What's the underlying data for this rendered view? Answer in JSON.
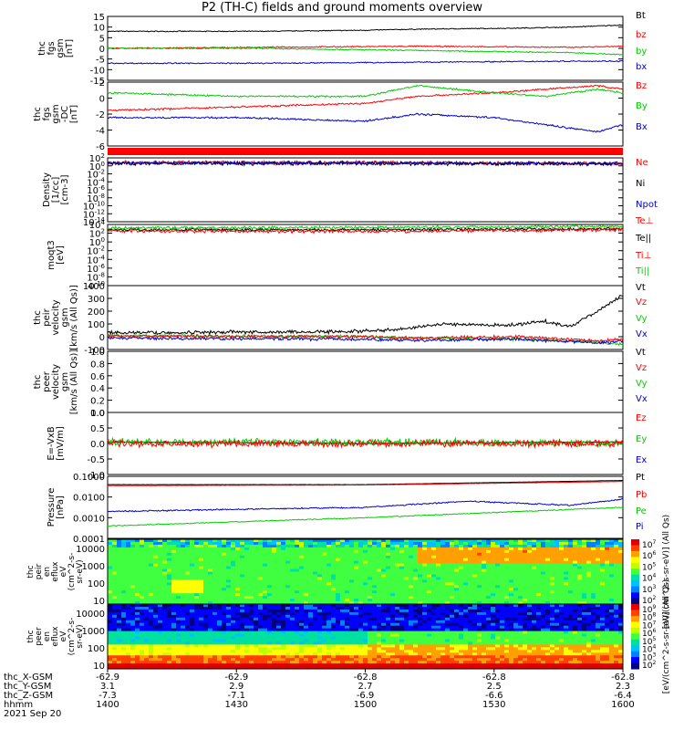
{
  "chart_data": {
    "type": "line",
    "title": "P2 (TH-C) fields and ground moments overview",
    "colors": {
      "black": "#000000",
      "red": "#ff0000",
      "green": "#00cc00",
      "blue": "#0000cc"
    },
    "panels": [
      {
        "ylabel": [
          "thc",
          "fgs",
          "gsm",
          "[nT]"
        ],
        "yticks": [
          "15",
          "10",
          "5",
          "0",
          "-5",
          "-10",
          "-15"
        ],
        "ylim": [
          -15,
          15
        ],
        "legend": [
          {
            "name": "Bt",
            "color": "black"
          },
          {
            "name": "bz",
            "color": "red"
          },
          {
            "name": "by",
            "color": "green"
          },
          {
            "name": "bx",
            "color": "blue"
          }
        ],
        "series": [
          {
            "name": "Bt",
            "color": "black",
            "noise": 0.08,
            "x": [
              0,
              0.3,
              0.5,
              0.6,
              0.8,
              0.9,
              1
            ],
            "y": [
              8,
              8,
              8.5,
              9,
              9.5,
              10,
              11
            ]
          },
          {
            "name": "bz",
            "color": "red",
            "noise": 0.1,
            "x": [
              0,
              0.3,
              0.6,
              0.9,
              1
            ],
            "y": [
              0,
              0.5,
              1,
              0.5,
              1
            ]
          },
          {
            "name": "by",
            "color": "green",
            "noise": 0.1,
            "x": [
              0,
              0.3,
              0.6,
              0.9,
              1
            ],
            "y": [
              0,
              0,
              -1,
              -2,
              -3
            ]
          },
          {
            "name": "bx",
            "color": "blue",
            "noise": 0.1,
            "x": [
              0,
              0.3,
              0.6,
              0.9,
              1
            ],
            "y": [
              -7,
              -7,
              -6.5,
              -6,
              -6
            ]
          }
        ]
      },
      {
        "ylabel": [
          "thc",
          "fgs",
          "gsm",
          "-DC",
          "[nT]"
        ],
        "yticks": [
          "2",
          "0",
          "-2",
          "-4",
          "-6"
        ],
        "ylim": [
          -7,
          2
        ],
        "legend": [
          {
            "name": "Bz",
            "color": "red"
          },
          {
            "name": "By",
            "color": "green"
          },
          {
            "name": "Bx",
            "color": "blue"
          }
        ],
        "series": [
          {
            "name": "Bz",
            "color": "red",
            "noise": 0.15,
            "x": [
              0,
              0.25,
              0.5,
              0.6,
              0.75,
              0.85,
              0.95,
              1
            ],
            "y": [
              -2,
              -1.5,
              -1,
              0,
              0.5,
              1,
              1.5,
              1
            ]
          },
          {
            "name": "By",
            "color": "green",
            "noise": 0.15,
            "x": [
              0,
              0.25,
              0.5,
              0.6,
              0.75,
              0.85,
              0.95,
              1
            ],
            "y": [
              0.5,
              0,
              0,
              1.5,
              0.5,
              0,
              1,
              0.5
            ]
          },
          {
            "name": "Bx",
            "color": "blue",
            "noise": 0.15,
            "x": [
              0,
              0.25,
              0.5,
              0.6,
              0.75,
              0.85,
              0.95,
              1
            ],
            "y": [
              -3,
              -3,
              -3.5,
              -2.5,
              -3,
              -4,
              -5,
              -4
            ]
          }
        ]
      },
      {
        "ylabel": [
          "Density",
          "[1/cc]",
          "[cm-3]"
        ],
        "yticks": [
          "10^2",
          "10^0",
          "10^-2",
          "10^-4",
          "10^-6",
          "10^-8",
          "10^-10",
          "10^-12",
          "10^-14"
        ],
        "ylim": [
          -14,
          2
        ],
        "log": true,
        "legend": [
          {
            "name": "Ne",
            "color": "red"
          },
          {
            "name": "Ni",
            "color": "black"
          },
          {
            "name": "Npot",
            "color": "blue"
          }
        ],
        "series": [
          {
            "name": "Ne",
            "color": "red",
            "noise": 0.3,
            "x": [
              0,
              0.5,
              1
            ],
            "y": [
              0.8,
              0.8,
              0.6
            ]
          },
          {
            "name": "Ni",
            "color": "black",
            "noise": 0.3,
            "x": [
              0,
              0.5,
              1
            ],
            "y": [
              0.6,
              0.6,
              0.5
            ]
          },
          {
            "name": "Npot",
            "color": "blue",
            "noise": 0.3,
            "x": [
              0,
              0.5,
              1
            ],
            "y": [
              0.7,
              0.7,
              0.6
            ]
          }
        ]
      },
      {
        "ylabel": [
          "moqt3",
          "[eV]"
        ],
        "yticks": [
          "10^4",
          "10^2",
          "10^0",
          "10^-2",
          "10^-4",
          "10^-6",
          "10^-8",
          "10^-10"
        ],
        "ylim": [
          -10,
          4
        ],
        "log": true,
        "legend": [
          {
            "name": "Te⊥",
            "color": "red"
          },
          {
            "name": "Te||",
            "color": "black"
          },
          {
            "name": "Ti⊥",
            "color": "red"
          },
          {
            "name": "Ti||",
            "color": "green"
          }
        ],
        "series": [
          {
            "name": "Te||",
            "color": "black",
            "noise": 0.25,
            "x": [
              0,
              0.5,
              1
            ],
            "y": [
              2.8,
              2.8,
              3
            ]
          },
          {
            "name": "Ti||",
            "color": "green",
            "noise": 0.25,
            "x": [
              0,
              0.5,
              1
            ],
            "y": [
              3.2,
              3.3,
              3.6
            ]
          },
          {
            "name": "Te⊥",
            "color": "red",
            "noise": 0.3,
            "x": [
              0,
              0.5,
              1
            ],
            "y": [
              2.5,
              2.4,
              2.8
            ]
          }
        ]
      },
      {
        "ylabel": [
          "thc",
          "peir",
          "velocity",
          "gsm",
          "[km/s (All Qs)]"
        ],
        "yticks": [
          "400",
          "300",
          "200",
          "100",
          "0",
          "-100"
        ],
        "ylim": [
          -100,
          400
        ],
        "legend": [
          {
            "name": "Vt",
            "color": "black"
          },
          {
            "name": "Vz",
            "color": "red"
          },
          {
            "name": "Vy",
            "color": "green"
          },
          {
            "name": "Vx",
            "color": "blue"
          }
        ],
        "series": [
          {
            "name": "Vy",
            "color": "green",
            "noise": 0.25,
            "x": [
              0,
              0.5,
              0.6,
              0.8,
              0.95,
              1
            ],
            "y": [
              10,
              0,
              -10,
              -20,
              -40,
              -60
            ]
          },
          {
            "name": "Vx",
            "color": "blue",
            "noise": 0.25,
            "x": [
              0,
              0.5,
              0.6,
              0.8,
              0.95,
              1
            ],
            "y": [
              -10,
              -20,
              -30,
              -20,
              -50,
              -30
            ]
          },
          {
            "name": "Vz",
            "color": "red",
            "noise": 0.25,
            "x": [
              0,
              0.5,
              0.6,
              0.8,
              0.95,
              1
            ],
            "y": [
              5,
              0,
              -10,
              0,
              -30,
              -20
            ]
          },
          {
            "name": "Vt",
            "color": "black",
            "noise": 0.3,
            "x": [
              0,
              0.45,
              0.55,
              0.65,
              0.78,
              0.85,
              0.9,
              0.95,
              1
            ],
            "y": [
              30,
              40,
              50,
              100,
              90,
              120,
              80,
              200,
              330
            ]
          }
        ]
      },
      {
        "ylabel": [
          "thc",
          "peer",
          "velocity",
          "gsm",
          "[km/s (All Qs)]"
        ],
        "yticks": [
          "1.0",
          "0.8",
          "0.6",
          "0.4",
          "0.2",
          "0.0"
        ],
        "ylim": [
          0,
          1
        ],
        "legend": [
          {
            "name": "Vt",
            "color": "black"
          },
          {
            "name": "Vz",
            "color": "red"
          },
          {
            "name": "Vy",
            "color": "green"
          },
          {
            "name": "Vx",
            "color": "blue"
          }
        ],
        "series": []
      },
      {
        "ylabel": [
          "E=-VxB",
          "[mV/m]"
        ],
        "yticks": [
          "1.0",
          "0.5",
          "0.0",
          "-0.5",
          "-1.0"
        ],
        "ylim": [
          -1,
          1
        ],
        "legend": [
          {
            "name": "Ez",
            "color": "red"
          },
          {
            "name": "Ey",
            "color": "green"
          },
          {
            "name": "Ex",
            "color": "blue"
          }
        ],
        "series": [
          {
            "name": "Ex",
            "color": "black",
            "noise": 0.05,
            "x": [
              0,
              0.5,
              1
            ],
            "y": [
              0.05,
              0,
              0.05
            ]
          },
          {
            "name": "Ey",
            "color": "green",
            "noise": 0.6,
            "x": [
              0,
              0.5,
              1
            ],
            "y": [
              0.05,
              0.05,
              0
            ]
          },
          {
            "name": "Ez",
            "color": "red",
            "noise": 0.6,
            "x": [
              0,
              0.5,
              1
            ],
            "y": [
              0,
              0,
              0
            ]
          }
        ]
      },
      {
        "ylabel": [
          "Pressure",
          "[nPa]"
        ],
        "yticks": [
          "0.1000",
          "0.0100",
          "0.0010",
          "0.0001"
        ],
        "ylim": [
          -4,
          -1
        ],
        "log": true,
        "legend": [
          {
            "name": "Pt",
            "color": "black"
          },
          {
            "name": "Pb",
            "color": "red"
          },
          {
            "name": "Pe",
            "color": "green"
          },
          {
            "name": "Pi",
            "color": "blue"
          }
        ],
        "series": [
          {
            "name": "Pt",
            "color": "black",
            "noise": 0.02,
            "x": [
              0,
              0.5,
              1
            ],
            "y": [
              -1.4,
              -1.4,
              -1.2
            ]
          },
          {
            "name": "Pb",
            "color": "red",
            "noise": 0.02,
            "x": [
              0,
              0.5,
              1
            ],
            "y": [
              -1.45,
              -1.42,
              -1.25
            ]
          },
          {
            "name": "Pi",
            "color": "blue",
            "noise": 0.12,
            "x": [
              0,
              0.25,
              0.5,
              0.7,
              0.9,
              1
            ],
            "y": [
              -2.7,
              -2.6,
              -2.5,
              -2.2,
              -2.4,
              -2.1
            ]
          },
          {
            "name": "Pe",
            "color": "green",
            "noise": 0.08,
            "x": [
              0,
              0.25,
              0.5,
              0.7,
              0.9,
              1
            ],
            "y": [
              -3.4,
              -3.2,
              -3,
              -2.8,
              -2.6,
              -2.5
            ]
          }
        ]
      }
    ],
    "spectrograms": [
      {
        "ylabel": [
          "thc",
          "peir",
          "en",
          "eflux",
          "eV",
          "(cm^2-s-",
          "sr-eV)"
        ],
        "yticks": [
          "10000",
          "1000",
          "100",
          "10"
        ],
        "ylim": [
          5,
          30000
        ],
        "log": true,
        "colorbar_label": "[eV/(cm^2-s-sr-eV)] (All Qs)",
        "colorbar_ticks": [
          "10^7",
          "10^6",
          "10^5",
          "10^4",
          "10^3",
          "10^2"
        ]
      },
      {
        "ylabel": [
          "thc",
          "peer",
          "en",
          "eflux",
          "eV",
          "(cm^2-s-",
          "sr-eV)"
        ],
        "yticks": [
          "10000",
          "1000",
          "100",
          "10"
        ],
        "ylim": [
          5,
          30000
        ],
        "log": true,
        "colorbar_label": "[eV/(cm^2-s-sr-eV)] (All Qs)",
        "colorbar_ticks": [
          "10^9",
          "10^8",
          "10^7",
          "10^6",
          "10^5",
          "10^4",
          "10^3",
          "10^2"
        ]
      }
    ],
    "x_axis": {
      "row_labels": [
        "thc_X-GSM",
        "thc_Y-GSM",
        "thc_Z-GSM",
        "hhmm",
        "2021 Sep 20"
      ],
      "ticks": [
        {
          "x": "-62.9",
          "y": "3.1",
          "z": "-7.3",
          "hhmm": "1400"
        },
        {
          "x": "-62.9",
          "y": "2.9",
          "z": "-7.1",
          "hhmm": "1430"
        },
        {
          "x": "-62.8",
          "y": "2.7",
          "z": "-6.9",
          "hhmm": "1500"
        },
        {
          "x": "-62.8",
          "y": "2.5",
          "z": "-6.6",
          "hhmm": "1530"
        },
        {
          "x": "-62.8",
          "y": "2.3",
          "z": "-6.4",
          "hhmm": "1600"
        }
      ]
    }
  }
}
